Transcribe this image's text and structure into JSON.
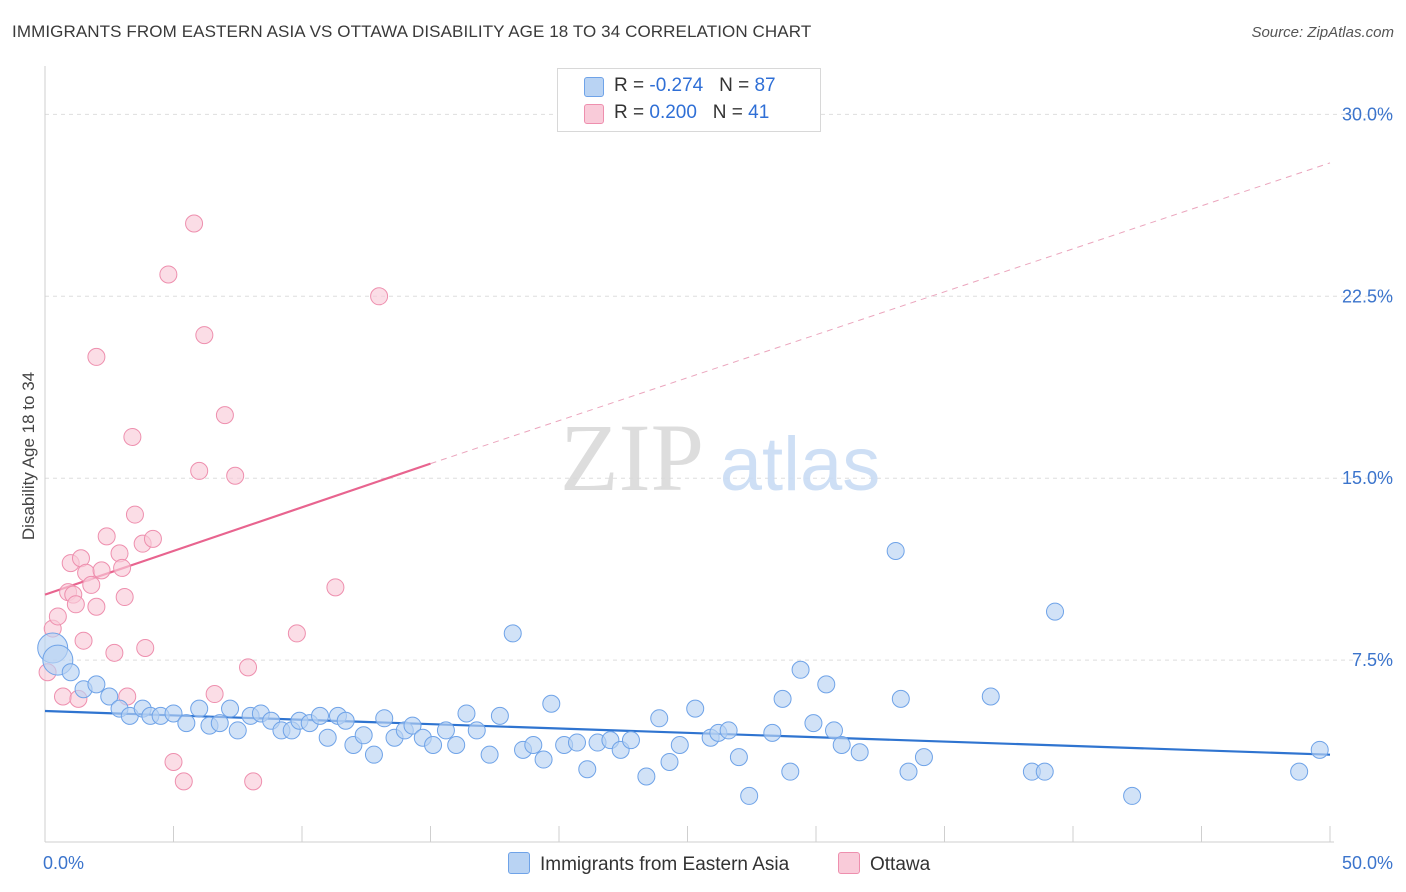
{
  "title": "IMMIGRANTS FROM EASTERN ASIA VS OTTAWA DISABILITY AGE 18 TO 34 CORRELATION CHART",
  "source": "Source: ZipAtlas.com",
  "watermark": {
    "zip": "ZIP",
    "atlas": "atlas"
  },
  "legend": {
    "rows": [
      {
        "r_label": "R = ",
        "r_value": "-0.274",
        "n_label": "N = ",
        "n_value": "87",
        "color": "#a9c8f0"
      },
      {
        "r_label": "R = ",
        "r_value": " 0.200",
        "n_label": "N = ",
        "n_value": "41",
        "color": "#f7b8cc"
      }
    ]
  },
  "bottom_legend": [
    {
      "label": "Immigrants from Eastern Asia",
      "color": "#a9c8f0"
    },
    {
      "label": "Ottawa",
      "color": "#f7b8cc"
    }
  ],
  "chart_data": {
    "type": "scatter",
    "title": "IMMIGRANTS FROM EASTERN ASIA VS OTTAWA DISABILITY AGE 18 TO 34 CORRELATION CHART",
    "xlabel": "",
    "ylabel": "Disability Age 18 to 34",
    "xlim": [
      0,
      50
    ],
    "ylim": [
      0,
      31.5
    ],
    "x_tick_labels": [
      {
        "value": 0,
        "label": "0.0%"
      },
      {
        "value": 50,
        "label": "50.0%"
      }
    ],
    "y_tick_labels": [
      {
        "value": 7.5,
        "label": "7.5%"
      },
      {
        "value": 15,
        "label": "15.0%"
      },
      {
        "value": 22.5,
        "label": "22.5%"
      },
      {
        "value": 30,
        "label": "30.0%"
      }
    ],
    "x_minor_ticks": [
      0,
      5,
      10,
      15,
      20,
      25,
      30,
      35,
      40,
      45,
      50
    ],
    "grid": true,
    "series": [
      {
        "name": "Immigrants from Eastern Asia",
        "color": "#6fa3e8",
        "fill": "#b9d3f3",
        "trend": {
          "x": [
            0,
            50
          ],
          "y": [
            5.4,
            3.6
          ],
          "style": "solid",
          "color": "#2f74d0"
        },
        "points": [
          [
            0.3,
            8.0
          ],
          [
            0.5,
            7.5
          ],
          [
            1.0,
            7.0
          ],
          [
            1.5,
            6.3
          ],
          [
            2.0,
            6.5
          ],
          [
            2.5,
            6.0
          ],
          [
            2.9,
            5.5
          ],
          [
            3.3,
            5.2
          ],
          [
            3.8,
            5.5
          ],
          [
            4.1,
            5.2
          ],
          [
            4.5,
            5.2
          ],
          [
            5.0,
            5.3
          ],
          [
            5.5,
            4.9
          ],
          [
            6.0,
            5.5
          ],
          [
            6.4,
            4.8
          ],
          [
            6.8,
            4.9
          ],
          [
            7.2,
            5.5
          ],
          [
            7.5,
            4.6
          ],
          [
            8.0,
            5.2
          ],
          [
            8.4,
            5.3
          ],
          [
            8.8,
            5.0
          ],
          [
            9.2,
            4.6
          ],
          [
            9.6,
            4.6
          ],
          [
            9.9,
            5.0
          ],
          [
            10.3,
            4.9
          ],
          [
            10.7,
            5.2
          ],
          [
            11.0,
            4.3
          ],
          [
            11.4,
            5.2
          ],
          [
            11.7,
            5.0
          ],
          [
            12.0,
            4.0
          ],
          [
            12.4,
            4.4
          ],
          [
            12.8,
            3.6
          ],
          [
            13.2,
            5.1
          ],
          [
            13.6,
            4.3
          ],
          [
            14.0,
            4.6
          ],
          [
            14.3,
            4.8
          ],
          [
            14.7,
            4.3
          ],
          [
            15.1,
            4.0
          ],
          [
            15.6,
            4.6
          ],
          [
            16.0,
            4.0
          ],
          [
            16.4,
            5.3
          ],
          [
            16.8,
            4.6
          ],
          [
            17.3,
            3.6
          ],
          [
            17.7,
            5.2
          ],
          [
            18.2,
            8.6
          ],
          [
            18.6,
            3.8
          ],
          [
            19.0,
            4.0
          ],
          [
            19.4,
            3.4
          ],
          [
            19.7,
            5.7
          ],
          [
            20.2,
            4.0
          ],
          [
            20.7,
            4.1
          ],
          [
            21.1,
            3.0
          ],
          [
            21.5,
            4.1
          ],
          [
            22.0,
            4.2
          ],
          [
            22.4,
            3.8
          ],
          [
            22.8,
            4.2
          ],
          [
            23.4,
            2.7
          ],
          [
            23.9,
            5.1
          ],
          [
            24.3,
            3.3
          ],
          [
            24.7,
            4.0
          ],
          [
            25.3,
            5.5
          ],
          [
            25.9,
            4.3
          ],
          [
            26.2,
            4.5
          ],
          [
            26.6,
            4.6
          ],
          [
            27.0,
            3.5
          ],
          [
            27.4,
            1.9
          ],
          [
            28.3,
            4.5
          ],
          [
            28.7,
            5.9
          ],
          [
            29.0,
            2.9
          ],
          [
            29.4,
            7.1
          ],
          [
            29.9,
            4.9
          ],
          [
            30.4,
            6.5
          ],
          [
            30.7,
            4.6
          ],
          [
            31.0,
            4.0
          ],
          [
            31.7,
            3.7
          ],
          [
            33.1,
            12.0
          ],
          [
            33.3,
            5.9
          ],
          [
            33.6,
            2.9
          ],
          [
            34.2,
            3.5
          ],
          [
            36.8,
            6.0
          ],
          [
            38.4,
            2.9
          ],
          [
            38.9,
            2.9
          ],
          [
            39.3,
            9.5
          ],
          [
            42.3,
            1.9
          ],
          [
            48.8,
            2.9
          ],
          [
            49.6,
            3.8
          ]
        ]
      },
      {
        "name": "Ottawa",
        "color": "#ee8fae",
        "fill": "#f9cbd9",
        "trend": {
          "x": [
            0,
            15
          ],
          "y": [
            10.2,
            15.6
          ],
          "style": "solid",
          "color": "#e8648f",
          "extension": {
            "x": [
              15,
              50
            ],
            "y": [
              15.6,
              28.0
            ],
            "style": "dashed"
          }
        },
        "points": [
          [
            0.1,
            7.0
          ],
          [
            0.3,
            8.8
          ],
          [
            0.5,
            9.3
          ],
          [
            0.7,
            6.0
          ],
          [
            0.9,
            10.3
          ],
          [
            1.0,
            11.5
          ],
          [
            1.1,
            10.2
          ],
          [
            1.2,
            9.8
          ],
          [
            1.4,
            11.7
          ],
          [
            1.6,
            11.1
          ],
          [
            1.8,
            10.6
          ],
          [
            2.0,
            9.7
          ],
          [
            2.2,
            11.2
          ],
          [
            2.4,
            12.6
          ],
          [
            2.7,
            7.8
          ],
          [
            2.9,
            11.9
          ],
          [
            3.0,
            11.3
          ],
          [
            3.1,
            10.1
          ],
          [
            3.4,
            16.7
          ],
          [
            3.5,
            13.5
          ],
          [
            3.8,
            12.3
          ],
          [
            3.9,
            8.0
          ],
          [
            4.2,
            12.5
          ],
          [
            4.8,
            23.4
          ],
          [
            5.0,
            3.3
          ],
          [
            5.4,
            2.5
          ],
          [
            5.8,
            25.5
          ],
          [
            6.0,
            15.3
          ],
          [
            6.2,
            20.9
          ],
          [
            6.6,
            6.1
          ],
          [
            7.0,
            17.6
          ],
          [
            7.4,
            15.1
          ],
          [
            7.9,
            7.2
          ],
          [
            8.1,
            2.5
          ],
          [
            9.8,
            8.6
          ],
          [
            11.3,
            10.5
          ],
          [
            13.0,
            22.5
          ],
          [
            2.0,
            20.0
          ],
          [
            1.5,
            8.3
          ],
          [
            1.3,
            5.9
          ],
          [
            3.2,
            6.0
          ]
        ]
      }
    ]
  }
}
